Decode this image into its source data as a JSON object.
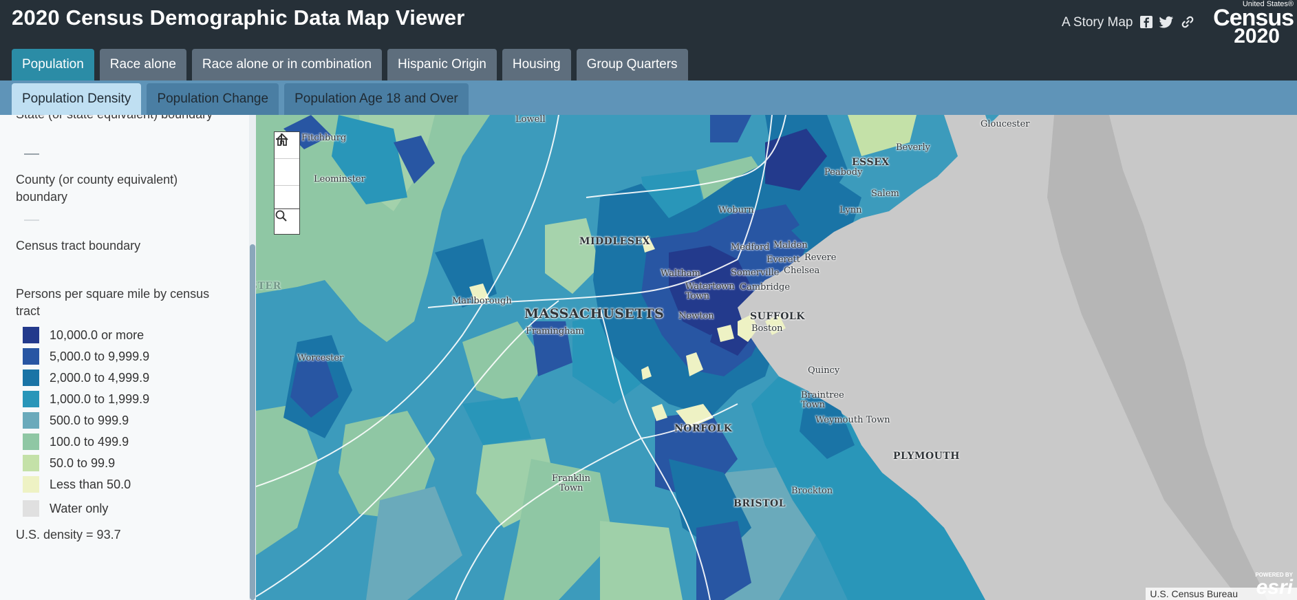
{
  "header": {
    "title": "2020 Census Demographic Data Map Viewer",
    "story_map": "A Story Map",
    "logo_top": "United States®",
    "logo_word": "Census",
    "logo_year": "2020"
  },
  "tabs": [
    {
      "label": "Population",
      "active": true
    },
    {
      "label": "Race alone",
      "active": false
    },
    {
      "label": "Race alone or in combination",
      "active": false
    },
    {
      "label": "Hispanic Origin",
      "active": false
    },
    {
      "label": "Housing",
      "active": false
    },
    {
      "label": "Group Quarters",
      "active": false
    }
  ],
  "subtabs": [
    {
      "label": "Population Density",
      "active": true
    },
    {
      "label": "Population Change",
      "active": false
    },
    {
      "label": "Population Age 18 and Over",
      "active": false
    }
  ],
  "legend": {
    "state_boundary": "State (or state equivalent) boundary",
    "county_boundary": "County (or county equivalent) boundary",
    "tract_boundary": "Census tract boundary",
    "density_title": "Persons per square mile by census tract",
    "classes": [
      {
        "label": "10,000.0 or more",
        "color": "#233a8c"
      },
      {
        "label": "5,000.0 to 9,999.9",
        "color": "#2856a3"
      },
      {
        "label": "2,000.0 to 4,999.9",
        "color": "#1a74a6"
      },
      {
        "label": "1,000.0 to 1,999.9",
        "color": "#2996b9"
      },
      {
        "label": "500.0 to 999.9",
        "color": "#6aaabb"
      },
      {
        "label": "100.0 to 499.9",
        "color": "#8fc7a4"
      },
      {
        "label": "50.0 to 99.9",
        "color": "#c4e1a8"
      },
      {
        "label": "Less than 50.0",
        "color": "#eef2c4"
      },
      {
        "label": "Water only",
        "color": "#e0e0e0"
      }
    ],
    "us_density": "U.S. density = 93.7"
  },
  "map": {
    "places": [
      {
        "label": "Lowell"
      },
      {
        "label": "Gloucester"
      },
      {
        "label": "Fitchburg"
      },
      {
        "label": "Beverly"
      },
      {
        "label": "ESSEX"
      },
      {
        "label": "Peabody"
      },
      {
        "label": "Leominster"
      },
      {
        "label": "Salem"
      },
      {
        "label": "Woburn"
      },
      {
        "label": "Lynn"
      },
      {
        "label": "MIDDLESEX"
      },
      {
        "label": "Medford"
      },
      {
        "label": "Malden"
      },
      {
        "label": "Everett"
      },
      {
        "label": "Revere"
      },
      {
        "label": "Waltham"
      },
      {
        "label": "Somerville"
      },
      {
        "label": "Chelsea"
      },
      {
        "label": "WORCESTER"
      },
      {
        "label": "Watertown Town"
      },
      {
        "label": "Cambridge"
      },
      {
        "label": "Marlborough"
      },
      {
        "label": "MASSACHUSETTS"
      },
      {
        "label": "Newton"
      },
      {
        "label": "SUFFOLK"
      },
      {
        "label": "Boston"
      },
      {
        "label": "Framingham"
      },
      {
        "label": "Worcester"
      },
      {
        "label": "Quincy"
      },
      {
        "label": "Braintree Town"
      },
      {
        "label": "Weymouth Town"
      },
      {
        "label": "NORFOLK"
      },
      {
        "label": "PLYMOUTH"
      },
      {
        "label": "Franklin Town"
      },
      {
        "label": "Brockton"
      },
      {
        "label": "BRISTOL"
      }
    ],
    "attribution": "U.S. Census Bureau",
    "esri_powered": "POWERED BY",
    "esri": "esri"
  },
  "icons": {
    "zoom_in": "plus-icon",
    "home": "home-icon",
    "zoom_out": "minus-icon",
    "search": "search-icon",
    "facebook": "facebook-icon",
    "twitter": "twitter-icon",
    "link": "link-icon"
  }
}
